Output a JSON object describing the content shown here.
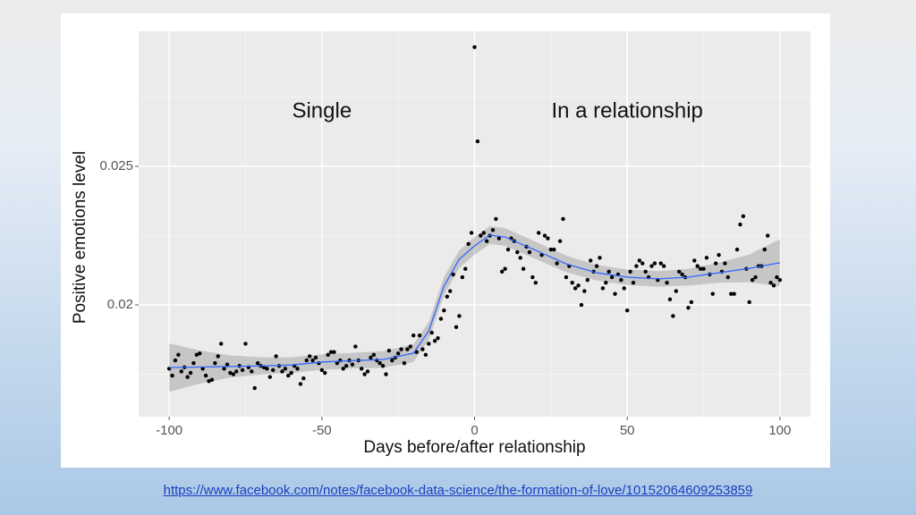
{
  "chart_data": {
    "type": "scatter",
    "x_label": "Days before/after relationship",
    "y_label": "Positive emotions level",
    "annotations": [
      {
        "text": "Single",
        "x": -50,
        "y": 0.02697
      },
      {
        "text": "In a relationship",
        "x": 50,
        "y": 0.02697
      }
    ],
    "xlim": [
      -110,
      110
    ],
    "xticks": [
      -100,
      -50,
      0,
      50,
      100
    ],
    "x_minor_ticks": [
      -75,
      -25,
      25,
      75
    ],
    "ylim": [
      0.01597,
      0.02987
    ],
    "yticks": [
      0.02,
      0.025
    ],
    "y_minor_ticks": [
      0.0175,
      0.0225,
      0.0275
    ],
    "grid": true,
    "color": "#000000",
    "x": [
      -100,
      -99,
      -98,
      -97,
      -96,
      -95,
      -94,
      -93,
      -92,
      -91,
      -90,
      -89,
      -88,
      -87,
      -86,
      -85,
      -84,
      -83,
      -82,
      -81,
      -80,
      -79,
      -78,
      -77,
      -76,
      -75,
      -74,
      -73,
      -72,
      -71,
      -70,
      -69,
      -68,
      -67,
      -66,
      -65,
      -64,
      -63,
      -62,
      -61,
      -60,
      -59,
      -58,
      -57,
      -56,
      -55,
      -54,
      -53,
      -52,
      -51,
      -50,
      -49,
      -48,
      -47,
      -46,
      -45,
      -44,
      -43,
      -42,
      -41,
      -40,
      -39,
      -38,
      -37,
      -36,
      -35,
      -34,
      -33,
      -32,
      -31,
      -30,
      -29,
      -28,
      -27,
      -26,
      -25,
      -24,
      -23,
      -22,
      -21,
      -20,
      -19,
      -18,
      -17,
      -16,
      -15,
      -14,
      -13,
      -12,
      -11,
      -10,
      -9,
      -8,
      -7,
      -6,
      -5,
      -4,
      -3,
      -2,
      -1,
      0,
      1,
      2,
      3,
      4,
      5,
      6,
      7,
      8,
      9,
      10,
      11,
      12,
      13,
      14,
      15,
      16,
      17,
      18,
      19,
      20,
      21,
      22,
      23,
      24,
      25,
      26,
      27,
      28,
      29,
      30,
      31,
      32,
      33,
      34,
      35,
      36,
      37,
      38,
      39,
      40,
      41,
      42,
      43,
      44,
      45,
      46,
      47,
      48,
      49,
      50,
      51,
      52,
      53,
      54,
      55,
      56,
      57,
      58,
      59,
      60,
      61,
      62,
      63,
      64,
      65,
      66,
      67,
      68,
      69,
      70,
      71,
      72,
      73,
      74,
      75,
      76,
      77,
      78,
      79,
      80,
      81,
      82,
      83,
      84,
      85,
      86,
      87,
      88,
      89,
      90,
      91,
      92,
      93,
      94,
      95,
      96,
      97,
      98,
      99,
      100
    ],
    "values": [
      0.0177,
      0.01745,
      0.018,
      0.0182,
      0.0176,
      0.01775,
      0.0174,
      0.01755,
      0.0179,
      0.0182,
      0.01825,
      0.0177,
      0.01745,
      0.01725,
      0.0173,
      0.0179,
      0.01815,
      0.0186,
      0.0177,
      0.01785,
      0.01755,
      0.0175,
      0.0176,
      0.0178,
      0.01765,
      0.0186,
      0.01775,
      0.0176,
      0.017,
      0.0179,
      0.0178,
      0.01775,
      0.0177,
      0.0174,
      0.01765,
      0.01815,
      0.0178,
      0.0176,
      0.0177,
      0.01745,
      0.01755,
      0.0178,
      0.0177,
      0.01715,
      0.01735,
      0.018,
      0.01815,
      0.018,
      0.0181,
      0.0179,
      0.01765,
      0.01755,
      0.0182,
      0.0183,
      0.0183,
      0.0179,
      0.018,
      0.0177,
      0.0178,
      0.018,
      0.01785,
      0.0185,
      0.018,
      0.0177,
      0.0175,
      0.0176,
      0.0181,
      0.0182,
      0.018,
      0.0179,
      0.0178,
      0.0175,
      0.01835,
      0.018,
      0.0181,
      0.01825,
      0.0184,
      0.0179,
      0.0184,
      0.0185,
      0.0189,
      0.0183,
      0.0189,
      0.0184,
      0.0182,
      0.0186,
      0.019,
      0.0187,
      0.0188,
      0.0195,
      0.0198,
      0.0203,
      0.0205,
      0.0211,
      0.0192,
      0.0196,
      0.021,
      0.0213,
      0.0222,
      0.0226,
      0.0293,
      0.0259,
      0.0225,
      0.0226,
      0.0223,
      0.0225,
      0.0227,
      0.0231,
      0.0224,
      0.0212,
      0.0213,
      0.022,
      0.0224,
      0.0223,
      0.0219,
      0.0217,
      0.0213,
      0.0221,
      0.0219,
      0.021,
      0.0208,
      0.0226,
      0.0218,
      0.0225,
      0.0224,
      0.022,
      0.022,
      0.0215,
      0.0223,
      0.0231,
      0.021,
      0.0214,
      0.0208,
      0.0206,
      0.0207,
      0.02,
      0.0205,
      0.0209,
      0.0216,
      0.0212,
      0.0214,
      0.0217,
      0.0206,
      0.0208,
      0.0212,
      0.021,
      0.0204,
      0.0211,
      0.0209,
      0.0206,
      0.0198,
      0.0212,
      0.0208,
      0.0214,
      0.0216,
      0.0215,
      0.0212,
      0.021,
      0.0214,
      0.0215,
      0.0209,
      0.0215,
      0.0214,
      0.0208,
      0.0202,
      0.0196,
      0.0205,
      0.0212,
      0.0211,
      0.021,
      0.0199,
      0.0201,
      0.0216,
      0.0214,
      0.0213,
      0.0213,
      0.0217,
      0.0211,
      0.0204,
      0.0215,
      0.0218,
      0.0212,
      0.0215,
      0.021,
      0.0204,
      0.0204,
      0.022,
      0.0229,
      0.0232,
      0.0213,
      0.0201,
      0.0209,
      0.021,
      0.0214,
      0.0214,
      0.022,
      0.0225,
      0.0208,
      0.0207,
      0.021,
      0.0209
    ],
    "smooth": {
      "color": "#3366ff",
      "band_color": "#999999",
      "x": [
        -100,
        -90,
        -80,
        -70,
        -60,
        -50,
        -40,
        -30,
        -20,
        -15,
        -10,
        -5,
        0,
        5,
        10,
        20,
        30,
        40,
        50,
        60,
        70,
        80,
        90,
        100
      ],
      "values": [
        0.01774,
        0.01776,
        0.01778,
        0.0178,
        0.01783,
        0.01794,
        0.01799,
        0.01803,
        0.01826,
        0.01906,
        0.02068,
        0.02165,
        0.02213,
        0.02252,
        0.02245,
        0.02197,
        0.02148,
        0.02116,
        0.021,
        0.02094,
        0.021,
        0.02116,
        0.02132,
        0.02152
      ],
      "lower": [
        0.01687,
        0.01716,
        0.01738,
        0.01749,
        0.01755,
        0.01766,
        0.01771,
        0.01773,
        0.01794,
        0.01874,
        0.02036,
        0.02133,
        0.02181,
        0.0222,
        0.02213,
        0.02166,
        0.02118,
        0.02088,
        0.02072,
        0.02066,
        0.0207,
        0.0208,
        0.02082,
        0.02067
      ],
      "upper": [
        0.01861,
        0.01836,
        0.01818,
        0.01811,
        0.01811,
        0.01822,
        0.01827,
        0.01833,
        0.01858,
        0.01938,
        0.021,
        0.02197,
        0.02245,
        0.02284,
        0.02277,
        0.02228,
        0.02178,
        0.02144,
        0.02128,
        0.02122,
        0.0213,
        0.02152,
        0.02182,
        0.02237
      ]
    }
  },
  "source_link": "https://www.facebook.com/notes/facebook-data-science/the-formation-of-love/10152064609253859"
}
